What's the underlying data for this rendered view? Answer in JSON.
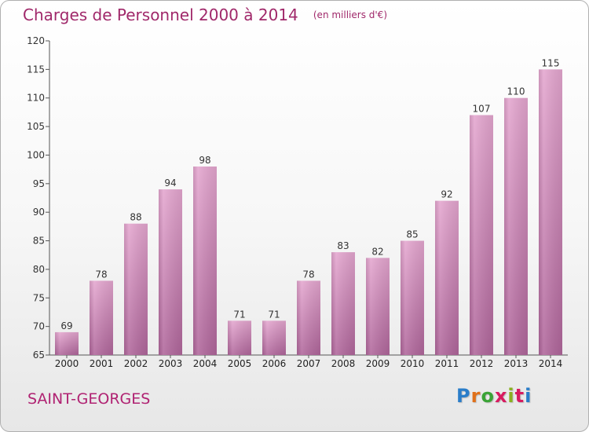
{
  "header": {
    "title": "Charges de Personnel 2000 à 2014",
    "subtitle": "(en milliers d'€)"
  },
  "location": "SAINT-GEORGES",
  "brand": {
    "name": "Proxiti",
    "letter_colors": [
      "#2a7dc9",
      "#e0701a",
      "#3aa336",
      "#d81b60",
      "#8ab020",
      "#d81b60",
      "#2a7dc9"
    ]
  },
  "colors": {
    "bar_top": "#e4a6cf",
    "bar_bottom": "#b0669b",
    "title": "#a0286a",
    "place": "#b02272"
  },
  "chart_data": {
    "type": "bar",
    "categories": [
      "2000",
      "2001",
      "2002",
      "2003",
      "2004",
      "2005",
      "2006",
      "2007",
      "2008",
      "2009",
      "2010",
      "2011",
      "2012",
      "2013",
      "2014"
    ],
    "values": [
      69,
      78,
      88,
      94,
      98,
      71,
      71,
      78,
      83,
      82,
      85,
      92,
      107,
      110,
      115
    ],
    "data_labels": [
      "69",
      "78",
      "88",
      "94",
      "98",
      "71",
      "71",
      "78",
      "83",
      "82",
      "85",
      "92",
      "107",
      "110",
      "115"
    ],
    "ylim": [
      65,
      120
    ],
    "yticks": [
      65,
      70,
      75,
      80,
      85,
      90,
      95,
      100,
      105,
      110,
      115,
      120
    ],
    "grid": false,
    "xlabel": "",
    "ylabel": ""
  }
}
